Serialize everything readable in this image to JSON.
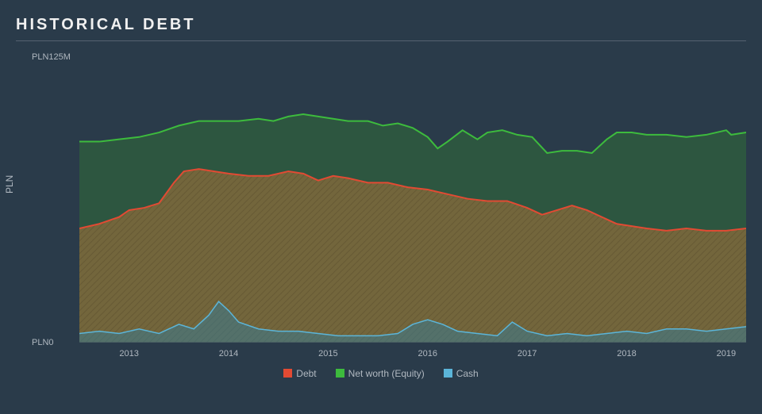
{
  "title": "HISTORICAL DEBT",
  "chart": {
    "type": "area",
    "background_color": "#2a3b4a",
    "plot_background_color": "#2a3b4a",
    "title_fontsize": 20,
    "title_color": "#f0f0f0",
    "label_fontsize": 12,
    "tick_fontsize": 11,
    "tick_color": "#b0b8c0",
    "grid_color": "#40505e",
    "ylabel": "PLN",
    "ylim": [
      0,
      125
    ],
    "yticks": [
      {
        "value": 0,
        "label": "PLN0"
      },
      {
        "value": 125,
        "label": "PLN125M"
      }
    ],
    "xaxis": {
      "min": 2012.5,
      "max": 2019.2
    },
    "xticks": [
      2013,
      2014,
      2015,
      2016,
      2017,
      2018,
      2019
    ],
    "legend_position": "bottom-center",
    "series": [
      {
        "name": "Debt",
        "line_color": "#e24a33",
        "fill_color": "#8a6b3a",
        "fill_opacity": 0.75,
        "hatch": "diagonal",
        "hatch_color": "#7a5c30",
        "line_width": 2,
        "data": [
          [
            2012.5,
            50
          ],
          [
            2012.7,
            52
          ],
          [
            2012.9,
            55
          ],
          [
            2013.0,
            58
          ],
          [
            2013.15,
            59
          ],
          [
            2013.3,
            61
          ],
          [
            2013.45,
            70
          ],
          [
            2013.55,
            75
          ],
          [
            2013.7,
            76
          ],
          [
            2013.85,
            75
          ],
          [
            2014.0,
            74
          ],
          [
            2014.2,
            73
          ],
          [
            2014.4,
            73
          ],
          [
            2014.6,
            75
          ],
          [
            2014.75,
            74
          ],
          [
            2014.9,
            71
          ],
          [
            2015.05,
            73
          ],
          [
            2015.2,
            72
          ],
          [
            2015.4,
            70
          ],
          [
            2015.6,
            70
          ],
          [
            2015.8,
            68
          ],
          [
            2016.0,
            67
          ],
          [
            2016.2,
            65
          ],
          [
            2016.4,
            63
          ],
          [
            2016.6,
            62
          ],
          [
            2016.8,
            62
          ],
          [
            2017.0,
            59
          ],
          [
            2017.15,
            56
          ],
          [
            2017.3,
            58
          ],
          [
            2017.45,
            60
          ],
          [
            2017.6,
            58
          ],
          [
            2017.75,
            55
          ],
          [
            2017.9,
            52
          ],
          [
            2018.05,
            51
          ],
          [
            2018.2,
            50
          ],
          [
            2018.4,
            49
          ],
          [
            2018.6,
            50
          ],
          [
            2018.8,
            49
          ],
          [
            2019.0,
            49
          ],
          [
            2019.2,
            50
          ]
        ]
      },
      {
        "name": "Net worth (Equity)",
        "line_color": "#3dbb3d",
        "fill_color": "#2e5c3e",
        "fill_opacity": 0.85,
        "line_width": 2,
        "data": [
          [
            2012.5,
            88
          ],
          [
            2012.7,
            88
          ],
          [
            2012.9,
            89
          ],
          [
            2013.1,
            90
          ],
          [
            2013.3,
            92
          ],
          [
            2013.5,
            95
          ],
          [
            2013.7,
            97
          ],
          [
            2013.9,
            97
          ],
          [
            2014.1,
            97
          ],
          [
            2014.3,
            98
          ],
          [
            2014.45,
            97
          ],
          [
            2014.6,
            99
          ],
          [
            2014.75,
            100
          ],
          [
            2014.9,
            99
          ],
          [
            2015.05,
            98
          ],
          [
            2015.2,
            97
          ],
          [
            2015.4,
            97
          ],
          [
            2015.55,
            95
          ],
          [
            2015.7,
            96
          ],
          [
            2015.85,
            94
          ],
          [
            2016.0,
            90
          ],
          [
            2016.1,
            85
          ],
          [
            2016.2,
            88
          ],
          [
            2016.35,
            93
          ],
          [
            2016.5,
            89
          ],
          [
            2016.6,
            92
          ],
          [
            2016.75,
            93
          ],
          [
            2016.9,
            91
          ],
          [
            2017.05,
            90
          ],
          [
            2017.2,
            83
          ],
          [
            2017.35,
            84
          ],
          [
            2017.5,
            84
          ],
          [
            2017.65,
            83
          ],
          [
            2017.8,
            89
          ],
          [
            2017.9,
            92
          ],
          [
            2018.05,
            92
          ],
          [
            2018.2,
            91
          ],
          [
            2018.4,
            91
          ],
          [
            2018.6,
            90
          ],
          [
            2018.8,
            91
          ],
          [
            2019.0,
            93
          ],
          [
            2019.05,
            91
          ],
          [
            2019.2,
            92
          ]
        ]
      },
      {
        "name": "Cash",
        "line_color": "#5bb5d9",
        "fill_color": "#3b7a8f",
        "fill_opacity": 0.55,
        "line_width": 1.5,
        "data": [
          [
            2012.5,
            4
          ],
          [
            2012.7,
            5
          ],
          [
            2012.9,
            4
          ],
          [
            2013.1,
            6
          ],
          [
            2013.3,
            4
          ],
          [
            2013.5,
            8
          ],
          [
            2013.65,
            6
          ],
          [
            2013.8,
            12
          ],
          [
            2013.9,
            18
          ],
          [
            2014.0,
            14
          ],
          [
            2014.1,
            9
          ],
          [
            2014.3,
            6
          ],
          [
            2014.5,
            5
          ],
          [
            2014.7,
            5
          ],
          [
            2014.9,
            4
          ],
          [
            2015.1,
            3
          ],
          [
            2015.3,
            3
          ],
          [
            2015.5,
            3
          ],
          [
            2015.7,
            4
          ],
          [
            2015.85,
            8
          ],
          [
            2016.0,
            10
          ],
          [
            2016.15,
            8
          ],
          [
            2016.3,
            5
          ],
          [
            2016.5,
            4
          ],
          [
            2016.7,
            3
          ],
          [
            2016.85,
            9
          ],
          [
            2017.0,
            5
          ],
          [
            2017.2,
            3
          ],
          [
            2017.4,
            4
          ],
          [
            2017.6,
            3
          ],
          [
            2017.8,
            4
          ],
          [
            2018.0,
            5
          ],
          [
            2018.2,
            4
          ],
          [
            2018.4,
            6
          ],
          [
            2018.6,
            6
          ],
          [
            2018.8,
            5
          ],
          [
            2019.0,
            6
          ],
          [
            2019.2,
            7
          ]
        ]
      }
    ]
  }
}
